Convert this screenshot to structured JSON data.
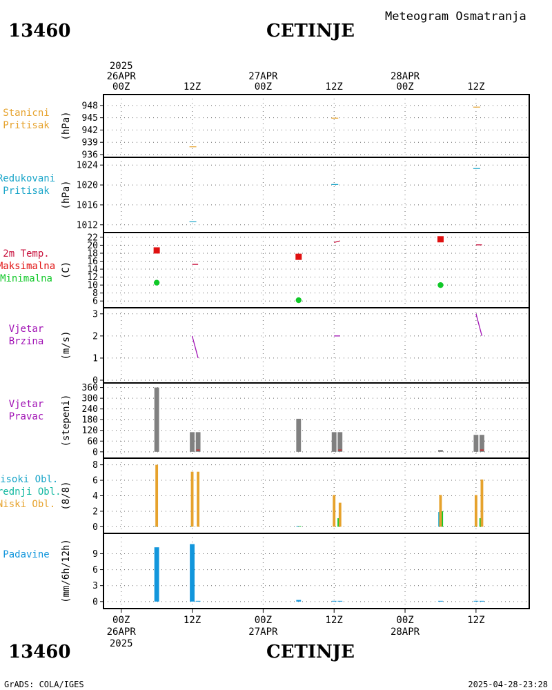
{
  "header": {
    "station_id": "13460",
    "station_name": "CETINJE",
    "title": "Meteogram Osmatranja"
  },
  "footer": {
    "source": "GrADS: COLA/IGES",
    "timestamp": "2025-04-28-23:28"
  },
  "colors": {
    "orange": "#e6a22c",
    "cyan": "#17a4c8",
    "crimson": "#c8103c",
    "red": "#e01010",
    "green": "#10c828",
    "purple": "#a010b4",
    "gray": "#808080",
    "teal": "#12b8a0",
    "blue": "#1296dc"
  },
  "chart_data": {
    "type": "meteogram",
    "time_axis": {
      "top": [
        {
          "hour": 0,
          "lines": [
            "2025",
            "26APR",
            "00Z"
          ]
        },
        {
          "hour": 12,
          "lines": [
            "12Z"
          ]
        },
        {
          "hour": 24,
          "lines": [
            "27APR",
            "00Z"
          ]
        },
        {
          "hour": 36,
          "lines": [
            "12Z"
          ]
        },
        {
          "hour": 48,
          "lines": [
            "28APR",
            "00Z"
          ]
        },
        {
          "hour": 60,
          "lines": [
            "12Z"
          ]
        }
      ],
      "bottom": [
        {
          "hour": 0,
          "lines": [
            "00Z",
            "26APR",
            "2025"
          ]
        },
        {
          "hour": 12,
          "lines": [
            "12Z"
          ]
        },
        {
          "hour": 24,
          "lines": [
            "00Z",
            "27APR"
          ]
        },
        {
          "hour": 36,
          "lines": [
            "12Z"
          ]
        },
        {
          "hour": 48,
          "lines": [
            "00Z",
            "28APR"
          ]
        },
        {
          "hour": 60,
          "lines": [
            "12Z"
          ]
        }
      ],
      "range_hours": [
        -3,
        69
      ]
    },
    "panels": [
      {
        "id": "station-pressure",
        "labels": [
          {
            "text": "Stanicni",
            "color": "#e6a22c"
          },
          {
            "text": "Pritisak",
            "color": "#e6a22c"
          }
        ],
        "unit": "(hPa)",
        "ylim": [
          936,
          950
        ],
        "ticks": [
          {
            "v": 948,
            "t": "948"
          },
          {
            "v": 945,
            "t": "945"
          },
          {
            "v": 942,
            "t": "942"
          },
          {
            "v": 939,
            "t": "939"
          },
          {
            "v": 936,
            "t": "936"
          }
        ],
        "series": [
          {
            "name": "",
            "kind": "dash",
            "color": "#e6a22c",
            "points": [
              [
                12,
                937.9
              ],
              [
                36,
                944.9
              ],
              [
                60,
                947.6
              ]
            ]
          }
        ]
      },
      {
        "id": "reduced-pressure",
        "labels": [
          {
            "text": "Redukovani",
            "color": "#17a4c8"
          },
          {
            "text": "Pritisak",
            "color": "#17a4c8"
          }
        ],
        "unit": "(hPa)",
        "ylim": [
          1011,
          1025
        ],
        "ticks": [
          {
            "v": 1024,
            "t": "1024"
          },
          {
            "v": 1020,
            "t": "1020"
          },
          {
            "v": 1016,
            "t": "1016"
          },
          {
            "v": 1012,
            "t": "1012"
          }
        ],
        "series": [
          {
            "name": "",
            "kind": "dash",
            "color": "#17a4c8",
            "points": [
              [
                12,
                1012.6
              ],
              [
                36,
                1020.1
              ],
              [
                60,
                1023.3
              ]
            ]
          }
        ]
      },
      {
        "id": "temperature",
        "labels": [
          {
            "text": "2m Temp.",
            "color": "#c8103c"
          },
          {
            "text": "Maksimalna",
            "color": "#e01010"
          },
          {
            "text": "Minimalna",
            "color": "#10c828"
          }
        ],
        "unit": "(C)",
        "ylim": [
          5,
          22.5
        ],
        "ticks": [
          {
            "v": 22,
            "t": "22"
          },
          {
            "v": 20,
            "t": "20"
          },
          {
            "v": 18,
            "t": "18"
          },
          {
            "v": 16,
            "t": "16"
          },
          {
            "v": 14,
            "t": "14"
          },
          {
            "v": 12,
            "t": "12"
          },
          {
            "v": 10,
            "t": "10"
          },
          {
            "v": 8,
            "t": "8"
          },
          {
            "v": 6,
            "t": "6"
          }
        ],
        "series": [
          {
            "name": "2m Temp.",
            "kind": "segments",
            "color": "#c8103c",
            "segments": [
              [
                [
                  12,
                  15.2
                ],
                [
                  13,
                  15.2
                ]
              ],
              [
                [
                  36,
                  20.7
                ],
                [
                  37,
                  21.1
                ]
              ],
              [
                [
                  60,
                  20.1
                ],
                [
                  61,
                  20.1
                ]
              ]
            ]
          },
          {
            "name": "Maksimalna",
            "kind": "square",
            "color": "#e01010",
            "points": [
              [
                6,
                18.7
              ],
              [
                30,
                17.1
              ],
              [
                54,
                21.5
              ]
            ]
          },
          {
            "name": "Minimalna",
            "kind": "circle",
            "color": "#10c828",
            "points": [
              [
                6,
                10.6
              ],
              [
                30,
                6.2
              ],
              [
                54,
                10.0
              ]
            ]
          }
        ]
      },
      {
        "id": "wind-speed",
        "labels": [
          {
            "text": "Vjetar",
            "color": "#a010b4"
          },
          {
            "text": "Brzina",
            "color": "#a010b4"
          }
        ],
        "unit": "(m/s)",
        "ylim": [
          0,
          3.15
        ],
        "ticks": [
          {
            "v": 3,
            "t": "3"
          },
          {
            "v": 2,
            "t": "2"
          },
          {
            "v": 1,
            "t": "1"
          },
          {
            "v": 0,
            "t": "0"
          }
        ],
        "series": [
          {
            "name": "",
            "kind": "segments",
            "color": "#a010b4",
            "segments": [
              [
                [
                  12,
                  2.0
                ],
                [
                  13,
                  1.0
                ]
              ],
              [
                [
                  36,
                  2.0
                ],
                [
                  37,
                  2.0
                ]
              ],
              [
                [
                  60,
                  3.0
                ],
                [
                  61,
                  2.0
                ]
              ]
            ]
          }
        ]
      },
      {
        "id": "wind-direction",
        "labels": [
          {
            "text": "Vjetar",
            "color": "#a010b4"
          },
          {
            "text": "Pravac",
            "color": "#a010b4"
          }
        ],
        "unit": "(stepeni)",
        "ylim": [
          -20,
          370
        ],
        "ticks": [
          {
            "v": 360,
            "t": "360"
          },
          {
            "v": 300,
            "t": "300"
          },
          {
            "v": 240,
            "t": "240"
          },
          {
            "v": 180,
            "t": "180"
          },
          {
            "v": 120,
            "t": "120"
          },
          {
            "v": 60,
            "t": "60"
          },
          {
            "v": 0,
            "t": "0"
          }
        ],
        "series": [
          {
            "name": "",
            "kind": "bars",
            "color": "#808080",
            "width": 0.8,
            "points": [
              [
                6,
                360
              ],
              [
                12,
                110
              ],
              [
                13,
                110
              ],
              [
                30,
                185
              ],
              [
                36,
                110
              ],
              [
                37,
                110
              ],
              [
                54,
                10
              ],
              [
                60,
                95
              ],
              [
                61,
                95
              ]
            ]
          },
          {
            "name": "",
            "kind": "segments",
            "color": "#e01010",
            "segments": [
              [
                [
                  12.7,
                  10
                ],
                [
                  13.3,
                  10
                ]
              ],
              [
                [
                  36.7,
                  10
                ],
                [
                  37.3,
                  10
                ]
              ],
              [
                [
                  60.7,
                  10
                ],
                [
                  61.3,
                  10
                ]
              ]
            ]
          }
        ]
      },
      {
        "id": "clouds",
        "labels": [
          {
            "text": "Visoki Obl.",
            "color": "#17a4c8"
          },
          {
            "text": "Srednji Obl.",
            "color": "#12b8a0"
          },
          {
            "text": "Niski Obl.",
            "color": "#e6a22c"
          }
        ],
        "unit": "(8/8)",
        "ylim": [
          -0.5,
          8.5
        ],
        "ticks": [
          {
            "v": 8,
            "t": "8"
          },
          {
            "v": 6,
            "t": "6"
          },
          {
            "v": 4,
            "t": "4"
          },
          {
            "v": 2,
            "t": "2"
          },
          {
            "v": 0,
            "t": "0"
          }
        ],
        "series": [
          {
            "name": "Srednji Obl.",
            "kind": "bars",
            "color": "#10c828",
            "width": 0.35,
            "offset": 0.25,
            "points": [
              [
                30,
                0.05
              ],
              [
                36.5,
                1.1
              ],
              [
                54,
                2.0
              ],
              [
                60.5,
                1.1
              ]
            ]
          },
          {
            "name": "Visoki Obl.",
            "kind": "bars",
            "color": "#17a4c8",
            "width": 0.35,
            "offset": -0.2,
            "points": [
              [
                6,
                0.1
              ],
              [
                12,
                0.1
              ],
              [
                30,
                0.05
              ],
              [
                54,
                1.9
              ],
              [
                60,
                0.1
              ]
            ]
          },
          {
            "name": "Niski Obl.",
            "kind": "bars",
            "color": "#e6a22c",
            "width": 0.45,
            "points": [
              [
                6,
                8
              ],
              [
                12,
                7.1
              ],
              [
                13,
                7.1
              ],
              [
                36,
                4.1
              ],
              [
                37,
                3.1
              ],
              [
                54,
                4.1
              ],
              [
                60,
                4.1
              ],
              [
                61,
                6.1
              ]
            ]
          }
        ]
      },
      {
        "id": "precipitation",
        "labels": [
          {
            "text": "Padavine",
            "color": "#1296dc"
          }
        ],
        "unit": "(mm/6h/12h)",
        "ylim": [
          -0.8,
          12.3
        ],
        "ticks": [
          {
            "v": 9,
            "t": "9"
          },
          {
            "v": 6,
            "t": "6"
          },
          {
            "v": 3,
            "t": "3"
          },
          {
            "v": 0,
            "t": "0"
          }
        ],
        "series": [
          {
            "name": "",
            "kind": "bars",
            "color": "#1296dc",
            "width": 0.8,
            "points": [
              [
                6,
                10.2
              ],
              [
                12,
                10.8
              ],
              [
                13,
                0.1
              ],
              [
                30,
                0.3
              ],
              [
                36,
                0.1
              ],
              [
                37,
                0.1
              ],
              [
                54,
                0.1
              ],
              [
                60,
                0.1
              ],
              [
                61,
                0.1
              ]
            ]
          }
        ]
      }
    ]
  }
}
